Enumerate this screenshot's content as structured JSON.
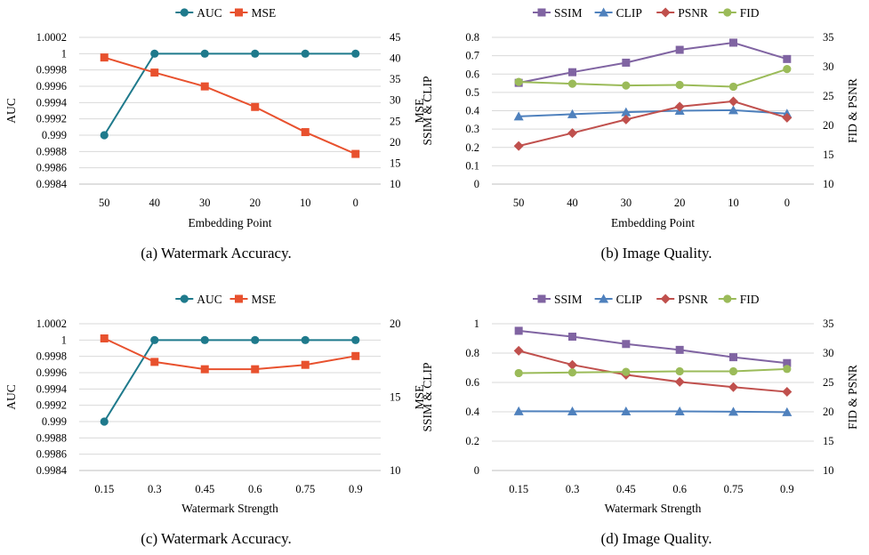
{
  "chart_data": [
    {
      "type": "line",
      "caption": "(a) Watermark Accuracy.",
      "categories": [
        "50",
        "40",
        "30",
        "20",
        "10",
        "0"
      ],
      "xlabel": "Embedding Point",
      "ylabel_left": "AUC",
      "ylabel_right": "MSE",
      "ylim_left": [
        0.9984,
        1.0002
      ],
      "yticks_left": [
        "1.0002",
        "1",
        "0.9998",
        "0.9996",
        "0.9994",
        "0.9992",
        "0.999",
        "0.9988",
        "0.9986",
        "0.9984"
      ],
      "ylim_right": [
        10,
        45
      ],
      "yticks_right": [
        "45",
        "40",
        "35",
        "30",
        "25",
        "20",
        "15",
        "10"
      ],
      "grid": "horizontal",
      "legend": "top-center",
      "series": [
        {
          "name": "AUC",
          "axis": "left",
          "marker": "circle",
          "color": "#1f7a8c",
          "values": [
            0.999,
            1,
            1,
            1,
            1,
            1
          ]
        },
        {
          "name": "MSE",
          "axis": "right",
          "marker": "square",
          "color": "#e8512e",
          "values": [
            40.2,
            36.6,
            33.3,
            28.4,
            22.4,
            17.2
          ]
        }
      ]
    },
    {
      "type": "line",
      "caption": "(b) Image Quality.",
      "categories": [
        "50",
        "40",
        "30",
        "20",
        "10",
        "0"
      ],
      "xlabel": "Embedding Point",
      "ylabel_left": "SSIM & CLIP",
      "ylabel_right": "FID & PSNR",
      "ylim_left": [
        0,
        0.8
      ],
      "yticks_left": [
        "0.8",
        "0.7",
        "0.6",
        "0.5",
        "0.4",
        "0.3",
        "0.2",
        "0.1",
        "0"
      ],
      "ylim_right": [
        10,
        35
      ],
      "yticks_right": [
        "35",
        "30",
        "25",
        "20",
        "15",
        "10"
      ],
      "grid": "horizontal",
      "legend": "top-center",
      "series": [
        {
          "name": "SSIM",
          "axis": "left",
          "marker": "square",
          "color": "#8064a2",
          "values": [
            0.552,
            0.61,
            0.662,
            0.732,
            0.771,
            0.682
          ]
        },
        {
          "name": "CLIP",
          "axis": "left",
          "marker": "triangle",
          "color": "#4f81bd",
          "values": [
            0.369,
            0.381,
            0.392,
            0.4,
            0.403,
            0.384
          ]
        },
        {
          "name": "PSNR",
          "axis": "right",
          "marker": "diamond",
          "color": "#c0504d",
          "values": [
            16.5,
            18.7,
            21.0,
            23.2,
            24.1,
            21.3
          ]
        },
        {
          "name": "FID",
          "axis": "right",
          "marker": "circle",
          "color": "#9bbb59",
          "values": [
            27.4,
            27.1,
            26.8,
            26.9,
            26.6,
            29.6
          ]
        }
      ]
    },
    {
      "type": "line",
      "caption": "(c) Watermark Accuracy.",
      "categories": [
        "0.15",
        "0.3",
        "0.45",
        "0.6",
        "0.75",
        "0.9"
      ],
      "xlabel": "Watermark Strength",
      "ylabel_left": "AUC",
      "ylabel_right": "MSE",
      "ylim_left": [
        0.9984,
        1.0002
      ],
      "yticks_left": [
        "1.0002",
        "1",
        "0.9998",
        "0.9996",
        "0.9994",
        "0.9992",
        "0.999",
        "0.9988",
        "0.9986",
        "0.9984"
      ],
      "ylim_right": [
        10,
        20
      ],
      "yticks_right": [
        "20",
        "15",
        "10"
      ],
      "grid": "horizontal",
      "legend": "top-center",
      "series": [
        {
          "name": "AUC",
          "axis": "left",
          "marker": "circle",
          "color": "#1f7a8c",
          "values": [
            0.999,
            1,
            1,
            1,
            1,
            1
          ]
        },
        {
          "name": "MSE",
          "axis": "right",
          "marker": "square",
          "color": "#e8512e",
          "values": [
            19.0,
            17.4,
            16.9,
            16.9,
            17.2,
            17.8
          ]
        }
      ]
    },
    {
      "type": "line",
      "caption": "(d) Image Quality.",
      "categories": [
        "0.15",
        "0.3",
        "0.45",
        "0.6",
        "0.75",
        "0.9"
      ],
      "xlabel": "Watermark Strength",
      "ylabel_left": "SSIM & CLIP",
      "ylabel_right": "FID & PSNR",
      "ylim_left": [
        0,
        1
      ],
      "yticks_left": [
        "1",
        "0.8",
        "0.6",
        "0.4",
        "0.2",
        "0"
      ],
      "ylim_right": [
        10,
        35
      ],
      "yticks_right": [
        "35",
        "30",
        "25",
        "20",
        "15",
        "10"
      ],
      "grid": "horizontal",
      "legend": "top-center",
      "series": [
        {
          "name": "SSIM",
          "axis": "left",
          "marker": "square",
          "color": "#8064a2",
          "values": [
            0.952,
            0.912,
            0.862,
            0.822,
            0.772,
            0.732
          ]
        },
        {
          "name": "CLIP",
          "axis": "left",
          "marker": "triangle",
          "color": "#4f81bd",
          "values": [
            0.404,
            0.403,
            0.403,
            0.403,
            0.401,
            0.398
          ]
        },
        {
          "name": "PSNR",
          "axis": "right",
          "marker": "diamond",
          "color": "#c0504d",
          "values": [
            30.4,
            28.0,
            26.3,
            25.1,
            24.2,
            23.4
          ]
        },
        {
          "name": "FID",
          "axis": "right",
          "marker": "circle",
          "color": "#9bbb59",
          "values": [
            26.6,
            26.7,
            26.8,
            26.9,
            26.9,
            27.3
          ]
        }
      ]
    }
  ]
}
